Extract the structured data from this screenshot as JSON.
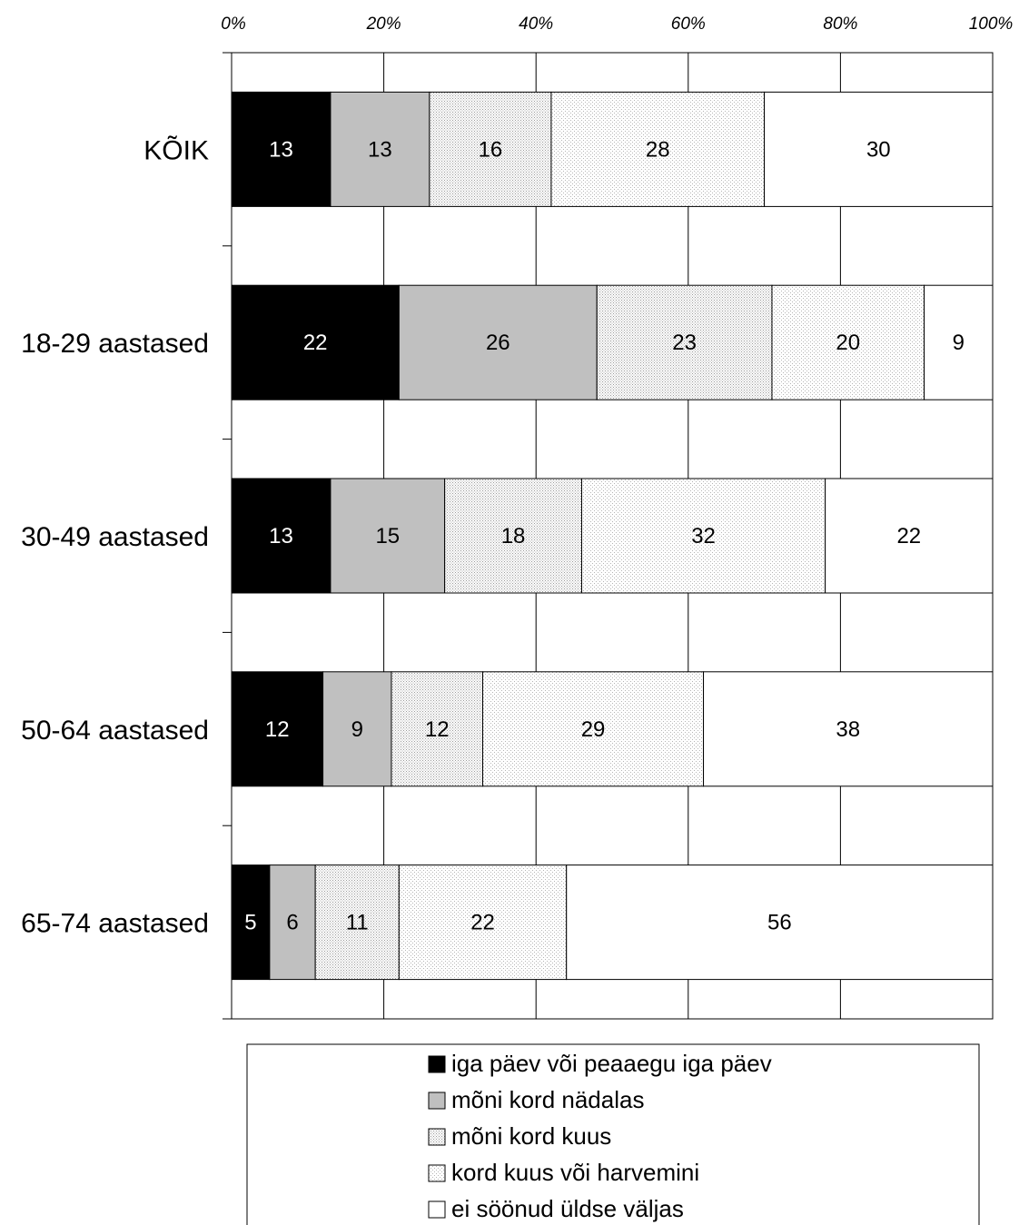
{
  "chart_data": {
    "type": "bar",
    "orientation": "horizontal",
    "stacked": true,
    "categories": [
      "KÕIK",
      "18-29 aastased",
      "30-49 aastased",
      "50-64 aastased",
      "65-74 aastased"
    ],
    "series": [
      {
        "name": "iga päev või peaaegu iga päev",
        "values": [
          13,
          22,
          13,
          12,
          5
        ],
        "color": "#000000",
        "pattern": "solid"
      },
      {
        "name": "mõni kord nädalas",
        "values": [
          13,
          26,
          15,
          9,
          6
        ],
        "color": "#c0c0c0",
        "pattern": "solid"
      },
      {
        "name": "mõni kord kuus",
        "values": [
          16,
          23,
          18,
          12,
          11
        ],
        "color": "#e6e6e6",
        "pattern": "dots-dense"
      },
      {
        "name": "kord kuus või harvemini",
        "values": [
          28,
          20,
          32,
          29,
          22
        ],
        "color": "#f2f2f2",
        "pattern": "dots-sparse"
      },
      {
        "name": "ei söönud üldse väljas",
        "values": [
          30,
          9,
          22,
          38,
          56
        ],
        "color": "#ffffff",
        "pattern": "solid"
      }
    ],
    "x_ticks": [
      "0%",
      "20%",
      "40%",
      "60%",
      "80%",
      "100%"
    ],
    "xlim": [
      0,
      100
    ],
    "xaxis_position": "top",
    "grid": "vertical",
    "legend": "bottom"
  }
}
